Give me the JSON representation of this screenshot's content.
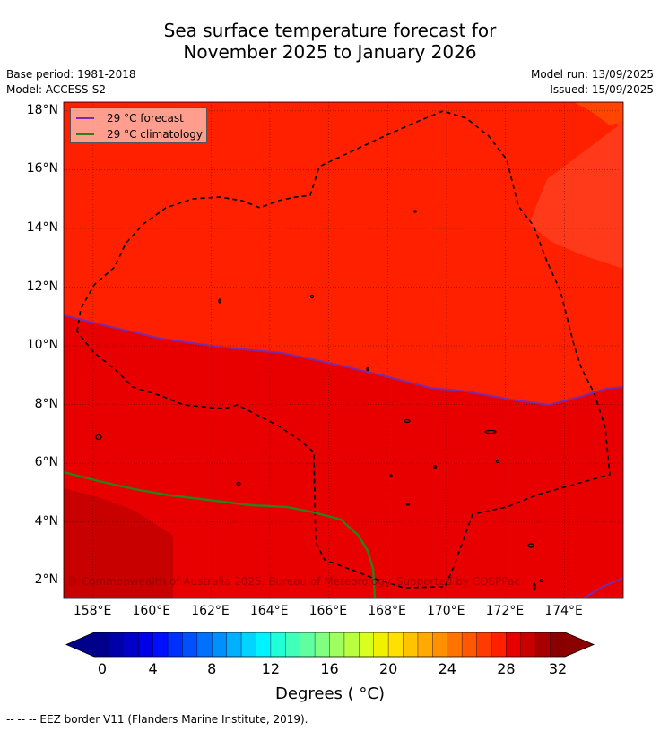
{
  "title_line1": "Sea surface temperature forecast for",
  "title_line2": "November 2025 to January 2026",
  "meta": {
    "base_period": "Base period: 1981-2018",
    "model": "Model: ACCESS-S2",
    "model_run": "Model run: 13/09/2025",
    "issued": "Issued: 15/09/2025"
  },
  "legend": {
    "forecast_label": "29 °C  forecast",
    "forecast_color": "#7b2aa8",
    "climatology_label": "29 °C  climatology",
    "climatology_color": "#2e7d1f"
  },
  "copyright": "© Commonwealth of Australia 2025, Bureau of Meteorology. Supported by COSPPac",
  "map": {
    "lon_range": [
      157,
      176
    ],
    "lat_range": [
      1.4,
      18.3
    ],
    "lon_ticks": [
      "158°E",
      "160°E",
      "162°E",
      "164°E",
      "166°E",
      "168°E",
      "170°E",
      "172°E",
      "174°E"
    ],
    "lat_ticks": [
      "2°N",
      "4°N",
      "6°N",
      "8°N",
      "10°N",
      "12°N",
      "14°N",
      "16°N",
      "18°N"
    ],
    "fill_colors": {
      "band_27_28": "#ff3a1a",
      "band_28_29": "#ff2000",
      "band_29_30": "#e80000",
      "band_30_31": "#c90000",
      "band_26_27": "#ff4500"
    }
  },
  "colorbar": {
    "ticks": [
      "0",
      "4",
      "8",
      "12",
      "16",
      "20",
      "24",
      "28",
      "32"
    ],
    "title": "Degrees ( °C)",
    "colors": [
      "#00008b",
      "#0000a8",
      "#0000c8",
      "#0000e8",
      "#0010ff",
      "#0030ff",
      "#0050ff",
      "#0070ff",
      "#0090ff",
      "#00b0ff",
      "#00d4ff",
      "#00f4ff",
      "#20ffd8",
      "#40ffb8",
      "#60ffa0",
      "#80ff80",
      "#a0ff60",
      "#b8ff40",
      "#d8ff20",
      "#f0f000",
      "#ffe000",
      "#ffc400",
      "#ffaa00",
      "#ff9000",
      "#ff7400",
      "#ff5800",
      "#ff3c00",
      "#ff2000",
      "#e80000",
      "#c90000",
      "#a80000",
      "#8a0000"
    ],
    "under_color": "#00008b",
    "over_color": "#8b0000"
  },
  "footer": "--  --  -- EEZ border V11 (Flanders Marine Institute, 2019)."
}
